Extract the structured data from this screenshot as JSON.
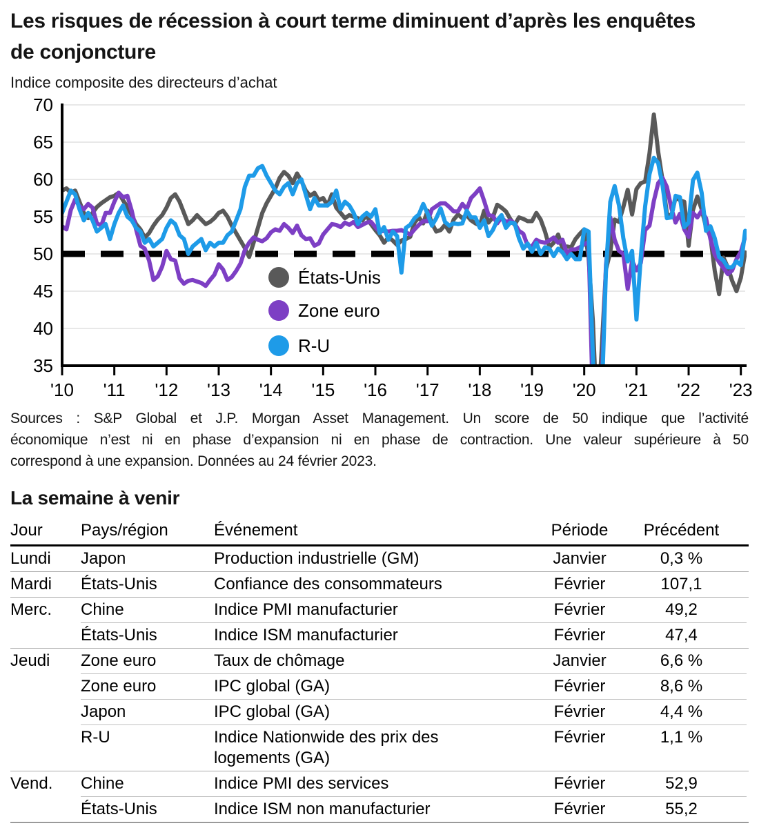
{
  "header": {
    "title": "Les risques de récession à court terme diminuent d’après les enquêtes\nde conjoncture",
    "subtitle": "Indice composite des directeurs d’achat"
  },
  "chart_data": {
    "type": "line",
    "title": "Indice composite des directeurs d’achat",
    "xlabel": "",
    "ylabel": "",
    "ylim": [
      35,
      70
    ],
    "ytick_step": 5,
    "grid": true,
    "gridline_color": "#d9d9d9",
    "axis_color": "#000000",
    "reference_line": {
      "value": 50,
      "style": "dashed",
      "color": "#000000"
    },
    "legend_position": "inside-bottom-left",
    "x_monthly_start": "2010-01",
    "x_monthly_end": "2023-02",
    "xtick_labels": [
      "'10",
      "'11",
      "'12",
      "'13",
      "'14",
      "'15",
      "'16",
      "'17",
      "'18",
      "'19",
      "'20",
      "'21",
      "'22",
      "'23"
    ],
    "series": [
      {
        "name": "États-Unis",
        "slug": "etats-unis",
        "color": "#595959",
        "values": [
          58.5,
          58.8,
          58.2,
          58.5,
          57.0,
          55.5,
          54.8,
          55.5,
          56.3,
          56.8,
          57.2,
          57.6,
          57.8,
          58.2,
          57.2,
          56.3,
          55.2,
          54.0,
          53.3,
          52.2,
          52.8,
          53.8,
          54.6,
          55.2,
          56.2,
          57.5,
          58.0,
          57.0,
          55.5,
          54.0,
          54.5,
          55.2,
          54.6,
          54.0,
          54.3,
          54.8,
          55.5,
          55.8,
          55.0,
          53.8,
          52.8,
          51.8,
          50.8,
          49.6,
          51.5,
          53.5,
          55.5,
          56.8,
          57.8,
          58.8,
          60.2,
          61.0,
          60.5,
          59.5,
          60.8,
          59.8,
          58.5,
          57.8,
          58.2,
          57.2,
          57.5,
          56.5,
          58.0,
          56.2,
          55.5,
          54.8,
          55.2,
          55.0,
          54.8,
          54.5,
          55.2,
          54.0,
          53.2,
          52.5,
          51.5,
          52.2,
          51.8,
          51.2,
          51.8,
          52.0,
          52.3,
          54.2,
          54.9,
          54.1,
          55.8,
          54.1,
          53.0,
          53.2,
          53.9,
          53.0,
          54.6,
          55.3,
          54.8,
          55.2,
          54.5,
          54.1,
          53.8,
          55.8,
          54.2,
          54.9,
          56.6,
          56.2,
          55.7,
          54.7,
          53.9,
          54.9,
          54.7,
          54.4,
          54.4,
          55.5,
          54.6,
          53.0,
          50.9,
          51.5,
          52.6,
          50.7,
          51.0,
          50.9,
          52.0,
          52.7,
          53.3,
          49.6,
          40.9,
          27.0,
          37.0,
          47.9,
          50.3,
          54.6,
          54.3,
          56.3,
          58.6,
          55.3,
          58.7,
          59.5,
          59.7,
          63.5,
          68.7,
          63.7,
          59.9,
          55.4,
          55.0,
          57.6,
          57.2,
          57.0,
          51.1,
          55.9,
          57.7,
          56.0,
          53.6,
          52.3,
          47.7,
          44.6,
          49.5,
          48.2,
          46.4,
          45.0,
          46.8,
          50.2
        ]
      },
      {
        "name": "Zone euro",
        "slug": "zone-euro",
        "color": "#7d3fc4",
        "values": [
          53.7,
          53.3,
          55.9,
          57.3,
          56.4,
          56.0,
          56.7,
          56.2,
          54.1,
          53.8,
          55.5,
          55.5,
          57.0,
          58.2,
          57.6,
          57.8,
          55.8,
          53.3,
          51.1,
          50.7,
          49.1,
          46.5,
          47.0,
          48.3,
          50.4,
          49.3,
          49.1,
          46.7,
          46.0,
          46.4,
          46.5,
          46.3,
          46.1,
          45.7,
          46.5,
          47.2,
          48.6,
          47.9,
          46.5,
          46.9,
          47.7,
          48.7,
          50.5,
          51.5,
          52.2,
          51.9,
          51.7,
          52.1,
          52.9,
          53.3,
          53.1,
          54.0,
          53.5,
          52.8,
          53.8,
          52.5,
          52.0,
          52.1,
          51.1,
          51.4,
          52.6,
          53.3,
          54.0,
          53.9,
          53.6,
          54.2,
          53.9,
          54.3,
          53.6,
          53.9,
          54.2,
          54.3,
          53.6,
          53.0,
          53.1,
          53.0,
          53.1,
          53.1,
          53.2,
          52.9,
          52.6,
          53.3,
          53.9,
          54.4,
          54.4,
          56.0,
          56.4,
          56.8,
          56.8,
          56.3,
          55.7,
          55.7,
          56.7,
          56.0,
          57.5,
          58.1,
          58.8,
          57.1,
          55.2,
          55.1,
          54.1,
          54.9,
          54.3,
          54.5,
          54.1,
          53.1,
          52.7,
          51.1,
          51.0,
          51.9,
          51.6,
          51.5,
          51.8,
          52.2,
          51.5,
          51.9,
          50.1,
          50.6,
          50.6,
          50.9,
          51.3,
          51.6,
          29.7,
          13.6,
          31.9,
          48.5,
          54.9,
          51.9,
          50.4,
          50.0,
          45.3,
          49.1,
          47.8,
          48.8,
          53.2,
          53.8,
          57.1,
          59.5,
          60.2,
          59.0,
          56.2,
          54.2,
          55.4,
          53.3,
          52.3,
          55.5,
          54.9,
          55.8,
          54.8,
          52.0,
          49.9,
          48.9,
          48.1,
          47.3,
          47.8,
          49.3,
          50.3,
          52.3
        ]
      },
      {
        "name": "R-U",
        "slug": "r-u",
        "color": "#1e9be8",
        "values": [
          55.5,
          57.0,
          58.5,
          58.0,
          56.0,
          54.5,
          55.5,
          54.5,
          53.0,
          53.5,
          54.0,
          52.0,
          54.0,
          55.5,
          56.5,
          55.0,
          54.5,
          53.5,
          53.0,
          51.5,
          52.0,
          51.0,
          51.5,
          52.0,
          53.5,
          54.5,
          54.0,
          52.5,
          52.0,
          50.0,
          51.0,
          51.5,
          52.0,
          50.5,
          51.5,
          51.0,
          51.5,
          51.5,
          52.5,
          53.0,
          54.5,
          56.0,
          59.0,
          60.5,
          60.5,
          61.5,
          61.8,
          60.5,
          59.5,
          58.5,
          58.0,
          59.0,
          59.5,
          58.0,
          59.5,
          60.0,
          58.0,
          56.0,
          57.5,
          56.5,
          56.5,
          56.5,
          57.0,
          58.5,
          56.0,
          57.0,
          56.5,
          55.5,
          54.0,
          55.0,
          55.5,
          55.0,
          56.0,
          52.8,
          53.6,
          51.9,
          53.0,
          52.4,
          47.5,
          53.5,
          53.9,
          54.8,
          55.3,
          56.7,
          55.4,
          53.8,
          54.8,
          56.1,
          54.3,
          53.8,
          54.1,
          54.0,
          54.1,
          55.8,
          54.9,
          54.9,
          53.5,
          54.5,
          52.4,
          53.2,
          54.5,
          55.2,
          53.5,
          54.2,
          54.1,
          52.1,
          50.7,
          51.4,
          50.3,
          51.5,
          50.0,
          50.9,
          50.7,
          49.7,
          50.7,
          50.2,
          49.3,
          50.0,
          49.3,
          49.3,
          53.3,
          53.0,
          36.0,
          13.8,
          30.0,
          47.7,
          57.0,
          59.1,
          56.5,
          52.1,
          49.0,
          50.4,
          41.2,
          49.6,
          56.4,
          60.7,
          62.9,
          62.2,
          59.2,
          54.8,
          54.9,
          57.8,
          57.6,
          53.6,
          54.2,
          59.9,
          60.9,
          58.2,
          53.1,
          53.7,
          52.1,
          49.6,
          49.1,
          48.2,
          48.2,
          49.0,
          48.5,
          53.1
        ]
      }
    ]
  },
  "chart_footnote": {
    "lines": [
      "Sources : S&P Global et J.P. Morgan Asset Management. Un score de 50 indique que l’activité",
      "économique n’est ni en phase d’expansion ni en phase de contraction. Une valeur supérieure à 50",
      "correspond à une expansion. Données au 24 février 2023."
    ]
  },
  "week_ahead": {
    "heading": "La semaine à venir",
    "columns": [
      "Jour",
      "Pays/région",
      "Événement",
      "Période",
      "Précédent"
    ],
    "rows": [
      {
        "jour": "Lundi",
        "pays": "Japon",
        "evenement": "Production industrielle (GM)",
        "periode": "Janvier",
        "precedent": "0,3 %"
      },
      {
        "jour": "Mardi",
        "pays": "États-Unis",
        "evenement": "Confiance des consommateurs",
        "periode": "Février",
        "precedent": "107,1"
      },
      {
        "jour": "Merc.",
        "pays": "Chine",
        "evenement": "Indice PMI manufacturier",
        "periode": "Février",
        "precedent": "49,2"
      },
      {
        "jour": "",
        "pays": "États-Unis",
        "evenement": "Indice ISM manufacturier",
        "periode": "Février",
        "precedent": "47,4"
      },
      {
        "jour": "Jeudi",
        "pays": "Zone euro",
        "evenement": "Taux de chômage",
        "periode": "Janvier",
        "precedent": "6,6 %"
      },
      {
        "jour": "",
        "pays": "Zone euro",
        "evenement": "IPC global (GA)",
        "periode": "Février",
        "precedent": "8,6 %"
      },
      {
        "jour": "",
        "pays": "Japon",
        "evenement": "IPC global (GA)",
        "periode": "Février",
        "precedent": "4,4 %"
      },
      {
        "jour": "",
        "pays": "R-U",
        "evenement": "Indice Nationwide des prix des\nlogements (GA)",
        "periode": "Février",
        "precedent": "1,1 %"
      },
      {
        "jour": "Vend.",
        "pays": "Chine",
        "evenement": "Indice PMI des services",
        "periode": "Février",
        "precedent": "52,9"
      },
      {
        "jour": "",
        "pays": "États-Unis",
        "evenement": "Indice ISM non manufacturier",
        "periode": "Février",
        "precedent": "55,2"
      }
    ]
  }
}
